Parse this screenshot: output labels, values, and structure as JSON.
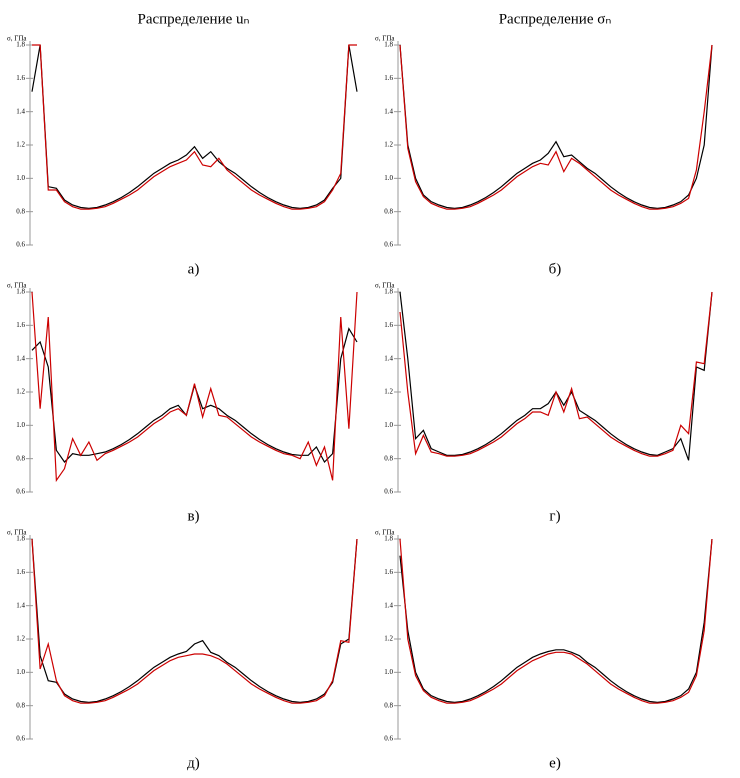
{
  "chart_data": [
    {
      "type": "line",
      "title": "Распределение uₙ",
      "ylabel": "σ, ГПа",
      "caption": "а)",
      "ylim": [
        0.6,
        1.8
      ],
      "yticks": [
        0.6,
        0.8,
        {
          "value": 1,
          "label": "1.0"
        },
        1.2,
        1.4,
        1.6,
        1.8
      ],
      "series": [
        {
          "color": "#000000",
          "values": [
            1.52,
            1.8,
            0.95,
            0.94,
            0.87,
            0.84,
            0.825,
            0.82,
            0.825,
            0.84,
            0.86,
            0.885,
            0.915,
            0.95,
            0.99,
            1.03,
            1.06,
            1.09,
            1.11,
            1.14,
            1.19,
            1.12,
            1.16,
            1.1,
            1.06,
            1.03,
            0.99,
            0.95,
            0.915,
            0.885,
            0.86,
            0.84,
            0.825,
            0.82,
            0.825,
            0.84,
            0.87,
            0.94,
            1.0,
            1.8,
            1.52
          ]
        },
        {
          "color": "#cc0000",
          "values": [
            1.8,
            1.8,
            0.93,
            0.93,
            0.86,
            0.83,
            0.815,
            0.815,
            0.82,
            0.83,
            0.85,
            0.875,
            0.9,
            0.93,
            0.97,
            1.01,
            1.04,
            1.07,
            1.09,
            1.11,
            1.16,
            1.08,
            1.07,
            1.12,
            1.05,
            1.01,
            0.97,
            0.93,
            0.9,
            0.875,
            0.85,
            0.83,
            0.815,
            0.815,
            0.82,
            0.83,
            0.86,
            0.93,
            1.03,
            1.8,
            1.8
          ]
        }
      ]
    },
    {
      "type": "line",
      "title": "Распределение σₙ",
      "ylabel": "σ, ГПа",
      "caption": "б)",
      "ylim": [
        0.6,
        1.8
      ],
      "yticks": [
        0.6,
        0.8,
        {
          "value": 1,
          "label": "1.0"
        },
        1.2,
        1.4,
        1.6,
        1.8
      ],
      "series": [
        {
          "color": "#000000",
          "values": [
            1.8,
            1.2,
            1.0,
            0.9,
            0.86,
            0.84,
            0.825,
            0.82,
            0.825,
            0.84,
            0.86,
            0.885,
            0.915,
            0.95,
            0.99,
            1.03,
            1.06,
            1.09,
            1.11,
            1.15,
            1.22,
            1.13,
            1.14,
            1.1,
            1.06,
            1.03,
            0.99,
            0.95,
            0.915,
            0.885,
            0.86,
            0.84,
            0.825,
            0.82,
            0.825,
            0.84,
            0.86,
            0.9,
            1.0,
            1.2,
            1.8
          ]
        },
        {
          "color": "#cc0000",
          "values": [
            1.8,
            1.18,
            0.98,
            0.89,
            0.85,
            0.83,
            0.815,
            0.815,
            0.82,
            0.83,
            0.85,
            0.875,
            0.9,
            0.93,
            0.97,
            1.01,
            1.04,
            1.07,
            1.09,
            1.08,
            1.16,
            1.04,
            1.12,
            1.09,
            1.05,
            1.01,
            0.97,
            0.93,
            0.9,
            0.875,
            0.85,
            0.83,
            0.815,
            0.815,
            0.82,
            0.83,
            0.85,
            0.88,
            1.05,
            1.4,
            1.8
          ]
        }
      ]
    },
    {
      "type": "line",
      "ylabel": "σ, ГПа",
      "caption": "в)",
      "ylim": [
        0.6,
        1.8
      ],
      "yticks": [
        0.6,
        0.8,
        {
          "value": 1,
          "label": "1.0"
        },
        1.2,
        1.4,
        1.6,
        1.8
      ],
      "series": [
        {
          "color": "#000000",
          "values": [
            1.45,
            1.5,
            1.35,
            0.85,
            0.78,
            0.83,
            0.82,
            0.82,
            0.83,
            0.84,
            0.86,
            0.885,
            0.915,
            0.95,
            0.99,
            1.03,
            1.06,
            1.1,
            1.12,
            1.06,
            1.24,
            1.1,
            1.12,
            1.1,
            1.06,
            1.03,
            0.99,
            0.95,
            0.915,
            0.885,
            0.86,
            0.84,
            0.825,
            0.82,
            0.82,
            0.87,
            0.78,
            0.83,
            1.4,
            1.58,
            1.5
          ]
        },
        {
          "color": "#cc0000",
          "values": [
            1.8,
            1.1,
            1.65,
            0.67,
            0.74,
            0.92,
            0.82,
            0.9,
            0.79,
            0.83,
            0.85,
            0.875,
            0.9,
            0.93,
            0.97,
            1.01,
            1.04,
            1.08,
            1.1,
            1.06,
            1.25,
            1.05,
            1.22,
            1.06,
            1.05,
            1.01,
            0.97,
            0.93,
            0.9,
            0.875,
            0.85,
            0.83,
            0.82,
            0.8,
            0.9,
            0.76,
            0.87,
            0.67,
            1.65,
            0.98,
            1.8
          ]
        }
      ]
    },
    {
      "type": "line",
      "ylabel": "σ, ГПа",
      "caption": "г)",
      "ylim": [
        0.6,
        1.8
      ],
      "yticks": [
        0.6,
        0.8,
        {
          "value": 1,
          "label": "1.0"
        },
        1.2,
        1.4,
        1.6,
        1.8
      ],
      "series": [
        {
          "color": "#000000",
          "values": [
            1.8,
            1.4,
            0.92,
            0.97,
            0.86,
            0.84,
            0.82,
            0.82,
            0.825,
            0.84,
            0.86,
            0.885,
            0.915,
            0.95,
            0.99,
            1.03,
            1.06,
            1.1,
            1.1,
            1.13,
            1.2,
            1.12,
            1.2,
            1.09,
            1.06,
            1.03,
            0.99,
            0.95,
            0.915,
            0.885,
            0.86,
            0.84,
            0.825,
            0.82,
            0.84,
            0.86,
            0.92,
            0.79,
            1.35,
            1.33,
            1.8
          ]
        },
        {
          "color": "#cc0000",
          "values": [
            1.68,
            1.2,
            0.83,
            0.94,
            0.84,
            0.83,
            0.815,
            0.815,
            0.82,
            0.83,
            0.85,
            0.875,
            0.9,
            0.93,
            0.97,
            1.01,
            1.04,
            1.08,
            1.08,
            1.06,
            1.2,
            1.08,
            1.22,
            1.04,
            1.05,
            1.01,
            0.97,
            0.93,
            0.9,
            0.875,
            0.85,
            0.83,
            0.815,
            0.815,
            0.83,
            0.85,
            1.0,
            0.95,
            1.38,
            1.37,
            1.8
          ]
        }
      ]
    },
    {
      "type": "line",
      "ylabel": "σ, ГПа",
      "caption": "д)",
      "ylim": [
        0.6,
        1.8
      ],
      "yticks": [
        0.6,
        0.8,
        {
          "value": 1,
          "label": "1.0"
        },
        1.2,
        1.4,
        1.6,
        1.8
      ],
      "series": [
        {
          "color": "#000000",
          "values": [
            1.8,
            1.1,
            0.95,
            0.94,
            0.87,
            0.84,
            0.825,
            0.82,
            0.825,
            0.84,
            0.86,
            0.885,
            0.915,
            0.95,
            0.99,
            1.03,
            1.06,
            1.09,
            1.11,
            1.125,
            1.17,
            1.19,
            1.12,
            1.1,
            1.06,
            1.03,
            0.99,
            0.95,
            0.915,
            0.885,
            0.86,
            0.84,
            0.825,
            0.82,
            0.825,
            0.84,
            0.87,
            0.94,
            1.17,
            1.2,
            1.8
          ]
        },
        {
          "color": "#cc0000",
          "values": [
            1.8,
            1.02,
            1.17,
            0.95,
            0.86,
            0.83,
            0.815,
            0.815,
            0.82,
            0.83,
            0.85,
            0.875,
            0.9,
            0.93,
            0.97,
            1.01,
            1.04,
            1.07,
            1.09,
            1.1,
            1.11,
            1.11,
            1.1,
            1.08,
            1.05,
            1.01,
            0.97,
            0.93,
            0.9,
            0.875,
            0.85,
            0.83,
            0.815,
            0.815,
            0.82,
            0.83,
            0.86,
            0.95,
            1.19,
            1.18,
            1.8
          ]
        }
      ]
    },
    {
      "type": "line",
      "ylabel": "σ, ГПа",
      "caption": "е)",
      "ylim": [
        0.6,
        1.8
      ],
      "yticks": [
        0.6,
        0.8,
        {
          "value": 1,
          "label": "1.0"
        },
        1.2,
        1.4,
        1.6,
        1.8
      ],
      "series": [
        {
          "color": "#000000",
          "values": [
            1.7,
            1.25,
            1.0,
            0.9,
            0.86,
            0.84,
            0.825,
            0.82,
            0.825,
            0.84,
            0.86,
            0.885,
            0.915,
            0.95,
            0.99,
            1.03,
            1.06,
            1.09,
            1.11,
            1.125,
            1.135,
            1.135,
            1.12,
            1.1,
            1.06,
            1.03,
            0.99,
            0.95,
            0.915,
            0.885,
            0.86,
            0.84,
            0.825,
            0.82,
            0.825,
            0.84,
            0.86,
            0.9,
            1.0,
            1.3,
            1.8
          ]
        },
        {
          "color": "#cc0000",
          "values": [
            1.8,
            1.2,
            0.98,
            0.89,
            0.85,
            0.83,
            0.815,
            0.815,
            0.82,
            0.83,
            0.85,
            0.875,
            0.9,
            0.93,
            0.97,
            1.01,
            1.04,
            1.07,
            1.09,
            1.11,
            1.12,
            1.12,
            1.11,
            1.08,
            1.05,
            1.01,
            0.97,
            0.93,
            0.9,
            0.875,
            0.85,
            0.83,
            0.815,
            0.815,
            0.82,
            0.83,
            0.85,
            0.88,
            0.98,
            1.25,
            1.8
          ]
        }
      ]
    }
  ]
}
